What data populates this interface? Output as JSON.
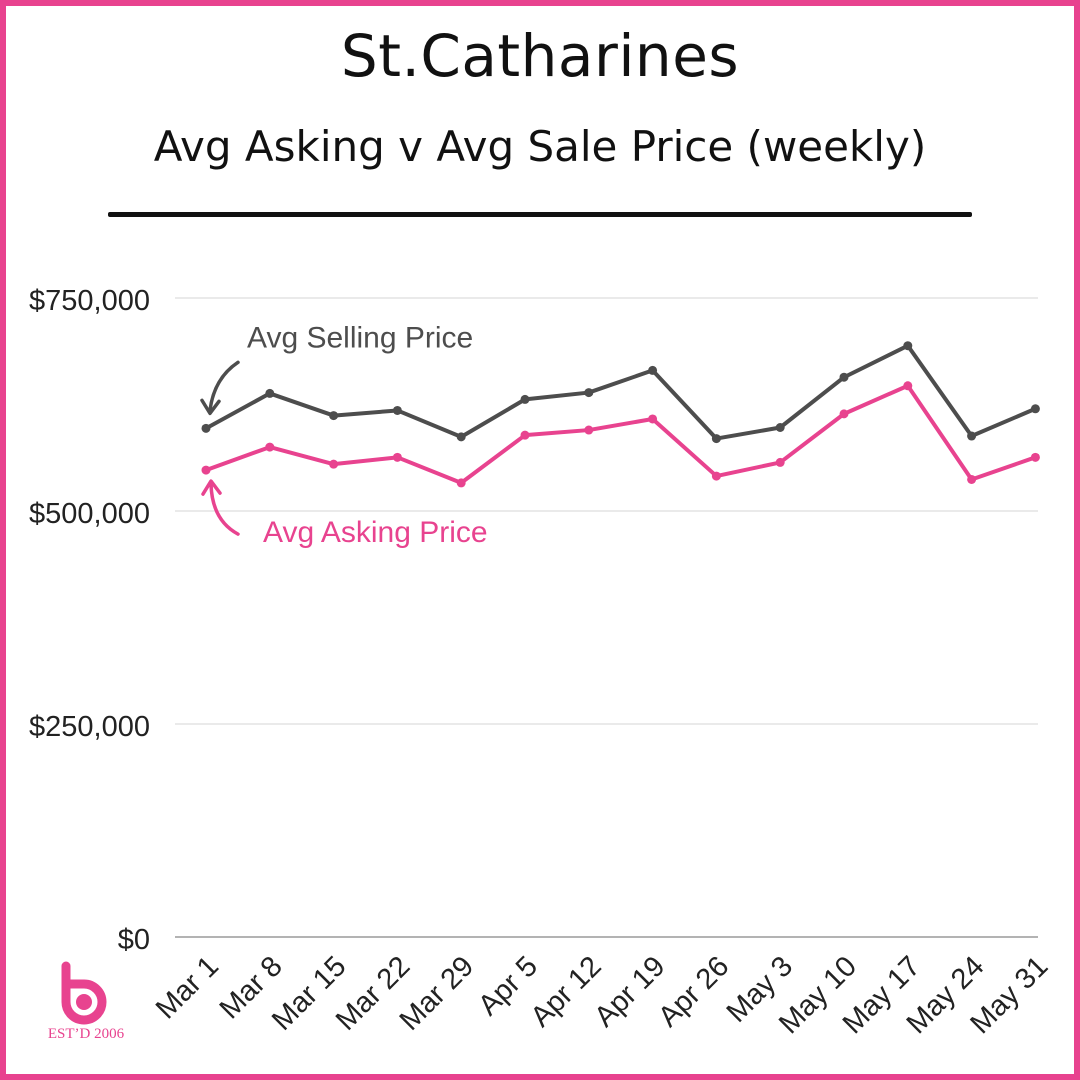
{
  "header": {
    "title": "St.Catharines",
    "subtitle": "Avg Asking v Avg Sale Price (weekly)"
  },
  "logo": {
    "text": "EST’D 2006",
    "color": "#e8438f"
  },
  "colors": {
    "border": "#e8438f",
    "selling": "#4d4d4d",
    "asking": "#e8438f"
  },
  "chart_data": {
    "type": "line",
    "categories": [
      "Mar 1",
      "Mar 8",
      "Mar 15",
      "Mar 22",
      "Mar 29",
      "Apr 5",
      "Apr 12",
      "Apr 19",
      "Apr 26",
      "May 3",
      "May 10",
      "May 17",
      "May 24",
      "May 31"
    ],
    "series": [
      {
        "name": "Avg Selling Price",
        "color": "#4d4d4d",
        "values": [
          597000,
          638000,
          612000,
          618000,
          587000,
          631000,
          639000,
          665000,
          585000,
          598000,
          657000,
          694000,
          588000,
          620000
        ]
      },
      {
        "name": "Avg Asking Price",
        "color": "#e8438f",
        "values": [
          548000,
          575000,
          555000,
          563000,
          533000,
          589000,
          595000,
          608000,
          541000,
          557000,
          614000,
          647000,
          537000,
          563000
        ]
      }
    ],
    "ylim": [
      0,
      750000
    ],
    "yticks": [
      0,
      250000,
      500000,
      750000
    ],
    "ytick_labels": [
      "$0",
      "$250,000",
      "$500,000",
      "$750,000"
    ],
    "grid": true,
    "xlabel": "",
    "ylabel": ""
  }
}
